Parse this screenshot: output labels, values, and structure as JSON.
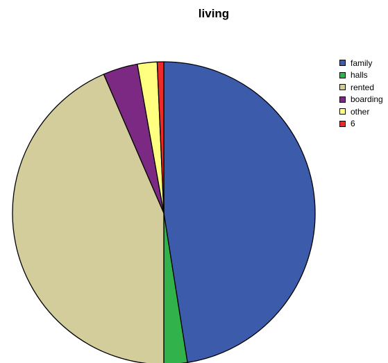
{
  "chart_data": {
    "type": "pie",
    "title": "living",
    "categories": [
      "family",
      "halls",
      "rented",
      "boarding",
      "other",
      "6"
    ],
    "values": [
      47.5,
      2.5,
      43.5,
      3.7,
      2.1,
      0.7
    ],
    "colors": [
      "#3d5bab",
      "#31b24a",
      "#d3cd9b",
      "#7b2983",
      "#ffff80",
      "#ec2a2a"
    ],
    "start_angle_deg": 0,
    "direction": "clockwise",
    "legend_position": "right"
  }
}
